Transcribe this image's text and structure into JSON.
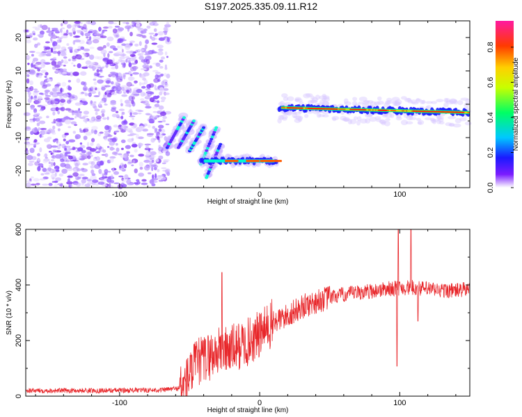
{
  "title": "S197.2025.335.09.11.R12",
  "chart_data": [
    {
      "type": "heatmap",
      "title": "S197.2025.335.09.11.R12",
      "xlabel": "Height of straight line (km)",
      "ylabel": "Frequency (Hz)",
      "xlim": [
        -167,
        150
      ],
      "ylim": [
        -25,
        25
      ],
      "xticks": [
        -100,
        0,
        100
      ],
      "yticks": [
        -20,
        -10,
        0,
        10,
        20
      ],
      "colorbar": {
        "label": "Normalized spectral amplitude",
        "range": [
          0,
          0.95
        ],
        "ticks": [
          0.0,
          0.2,
          0.4,
          0.6,
          0.8
        ],
        "tick_labels": [
          "0.0",
          "0.2",
          "0.4",
          "0.6",
          "0.8"
        ]
      },
      "features": [
        {
          "name": "noise-region",
          "x_range": [
            -167,
            -65
          ],
          "f_range": [
            -25,
            25
          ],
          "amplitude": 0.1
        },
        {
          "name": "rising-streaks",
          "x_range": [
            -68,
            -30
          ],
          "f_range": [
            -22,
            -4
          ],
          "amplitude": 0.25
        },
        {
          "name": "low-band",
          "x_range": [
            -42,
            12
          ],
          "frequency": -17,
          "amplitude": 0.7
        },
        {
          "name": "main-band",
          "x_range": [
            14,
            150
          ],
          "frequency_start": -1,
          "frequency_end": -2.5,
          "amplitude": 0.8
        }
      ]
    },
    {
      "type": "line",
      "xlabel": "Height of straight line (km)",
      "ylabel": "SNR (10 * v/v)",
      "xlim": [
        -167,
        150
      ],
      "ylim": [
        0,
        600
      ],
      "xticks": [
        -100,
        0,
        100
      ],
      "yticks": [
        0,
        200,
        400,
        600
      ],
      "series": [
        {
          "name": "SNR",
          "color": "#e8262a",
          "x": [
            -167,
            -120,
            -70,
            -55,
            -45,
            -30,
            -20,
            -10,
            0,
            10,
            20,
            30,
            40,
            50,
            60,
            70,
            80,
            90,
            100,
            110,
            120,
            130,
            140,
            150
          ],
          "y": [
            20,
            20,
            22,
            30,
            120,
            160,
            170,
            190,
            220,
            265,
            290,
            320,
            340,
            355,
            365,
            372,
            378,
            385,
            390,
            390,
            385,
            380,
            380,
            385
          ]
        }
      ],
      "spikes": [
        {
          "x": -27,
          "y": 445
        },
        {
          "x": 99,
          "y": 600
        },
        {
          "x": 108,
          "y": 600
        },
        {
          "x": 98,
          "y": 108
        },
        {
          "x": 113,
          "y": 270
        }
      ]
    }
  ]
}
